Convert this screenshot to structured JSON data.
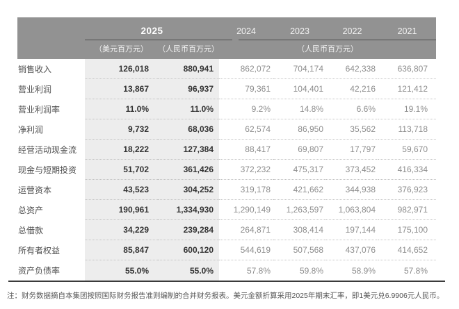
{
  "header": {
    "current_year": "2025",
    "unit_usd": "（美元百万元）",
    "unit_rmb": "（人民币百万元）",
    "prior_years": [
      "2024",
      "2023",
      "2022",
      "2021"
    ],
    "prior_years_unit": "（人民币百万元）"
  },
  "rows": [
    {
      "label": "销售收入",
      "usd": "126,018",
      "rmb": "880,941",
      "y2024": "862,072",
      "y2023": "704,174",
      "y2022": "642,338",
      "y2021": "636,807"
    },
    {
      "label": "营业利润",
      "usd": "13,867",
      "rmb": "96,937",
      "y2024": "79,361",
      "y2023": "104,401",
      "y2022": "42,216",
      "y2021": "121,412"
    },
    {
      "label": "营业利润率",
      "usd": "11.0%",
      "rmb": "11.0%",
      "y2024": "9.2%",
      "y2023": "14.8%",
      "y2022": "6.6%",
      "y2021": "19.1%"
    },
    {
      "label": "净利润",
      "usd": "9,732",
      "rmb": "68,036",
      "y2024": "62,574",
      "y2023": "86,950",
      "y2022": "35,562",
      "y2021": "113,718"
    },
    {
      "label": "经营活动现金流",
      "usd": "18,222",
      "rmb": "127,384",
      "y2024": "88,417",
      "y2023": "69,807",
      "y2022": "17,797",
      "y2021": "59,670"
    },
    {
      "label": "现金与短期投资",
      "usd": "51,702",
      "rmb": "361,426",
      "y2024": "372,232",
      "y2023": "475,317",
      "y2022": "373,452",
      "y2021": "416,334"
    },
    {
      "label": "运营资本",
      "usd": "43,523",
      "rmb": "304,252",
      "y2024": "319,178",
      "y2023": "421,662",
      "y2022": "344,938",
      "y2021": "376,923"
    },
    {
      "label": "总资产",
      "usd": "190,961",
      "rmb": "1,334,930",
      "y2024": "1,290,149",
      "y2023": "1,263,597",
      "y2022": "1,063,804",
      "y2021": "982,971"
    },
    {
      "label": "总借款",
      "usd": "34,229",
      "rmb": "239,284",
      "y2024": "264,871",
      "y2023": "308,414",
      "y2022": "197,144",
      "y2021": "175,100"
    },
    {
      "label": "所有者权益",
      "usd": "85,847",
      "rmb": "600,120",
      "y2024": "544,619",
      "y2023": "507,568",
      "y2022": "437,076",
      "y2021": "414,652"
    },
    {
      "label": "资产负债率",
      "usd": "55.0%",
      "rmb": "55.0%",
      "y2024": "57.8%",
      "y2023": "59.8%",
      "y2022": "58.9%",
      "y2021": "57.8%"
    }
  ],
  "note": "注：财务数据摘自本集团按照国际财务报告准则编制的合并财务报表。美元金额折算采用2025年期末汇率，即1美元兑6.9906元人民币。",
  "colors": {
    "header_band": "#929292",
    "header_text": "#f7f7f7",
    "highlight_column": "#ededed",
    "bold_value_text": "#333333",
    "gray_value_text": "#8d8d8d",
    "row_label_text": "#4d4d4d",
    "dotted_separator": "#c3c3c3",
    "bottom_rule": "#3b3b3b"
  }
}
